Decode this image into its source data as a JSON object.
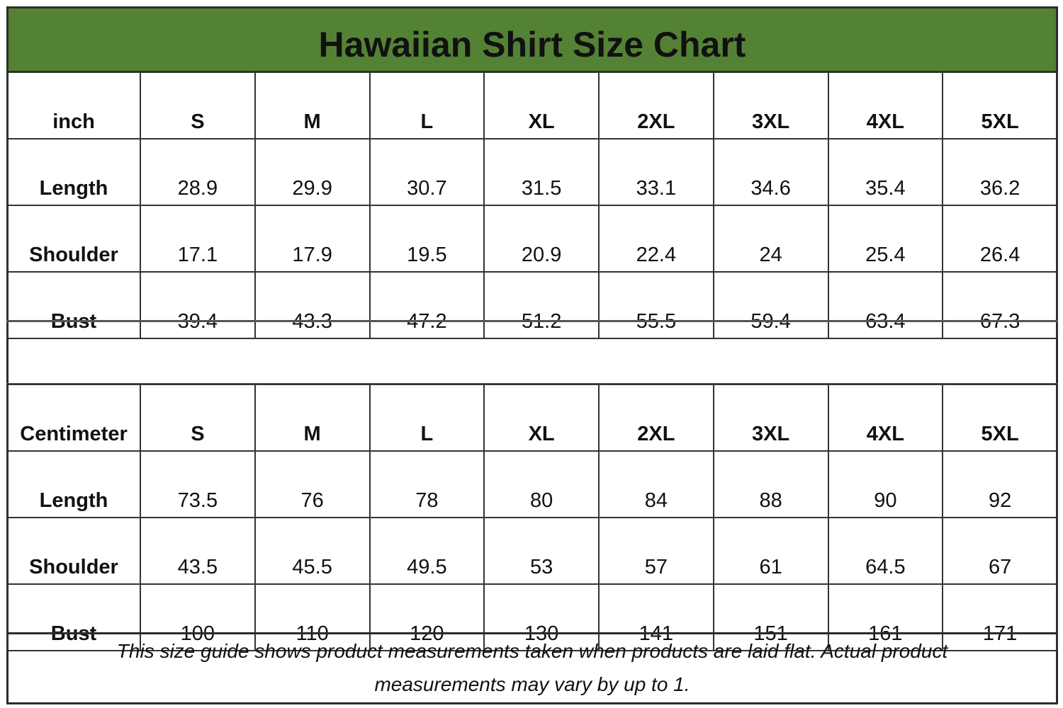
{
  "title": "Hawaiian Shirt Size Chart",
  "colors": {
    "title_bg": "#548235",
    "border": "#2b2b2b"
  },
  "tables": [
    {
      "unit": "inch",
      "sizes": [
        "S",
        "M",
        "L",
        "XL",
        "2XL",
        "3XL",
        "4XL",
        "5XL"
      ],
      "rows": [
        {
          "label": "Length",
          "values": [
            "28.9",
            "29.9",
            "30.7",
            "31.5",
            "33.1",
            "34.6",
            "35.4",
            "36.2"
          ]
        },
        {
          "label": "Shoulder",
          "values": [
            "17.1",
            "17.9",
            "19.5",
            "20.9",
            "22.4",
            "24",
            "25.4",
            "26.4"
          ]
        },
        {
          "label": "Bust",
          "values": [
            "39.4",
            "43.3",
            "47.2",
            "51.2",
            "55.5",
            "59.4",
            "63.4",
            "67.3"
          ]
        }
      ]
    },
    {
      "unit": "Centimeter",
      "sizes": [
        "S",
        "M",
        "L",
        "XL",
        "2XL",
        "3XL",
        "4XL",
        "5XL"
      ],
      "rows": [
        {
          "label": "Length",
          "values": [
            "73.5",
            "76",
            "78",
            "80",
            "84",
            "88",
            "90",
            "92"
          ]
        },
        {
          "label": "Shoulder",
          "values": [
            "43.5",
            "45.5",
            "49.5",
            "53",
            "57",
            "61",
            "64.5",
            "67"
          ]
        },
        {
          "label": "Bust",
          "values": [
            "100",
            "110",
            "120",
            "130",
            "141",
            "151",
            "161",
            "171"
          ]
        }
      ]
    }
  ],
  "note": "This size guide shows product measurements taken when products are laid flat. Actual product measurements may vary by up to 1."
}
